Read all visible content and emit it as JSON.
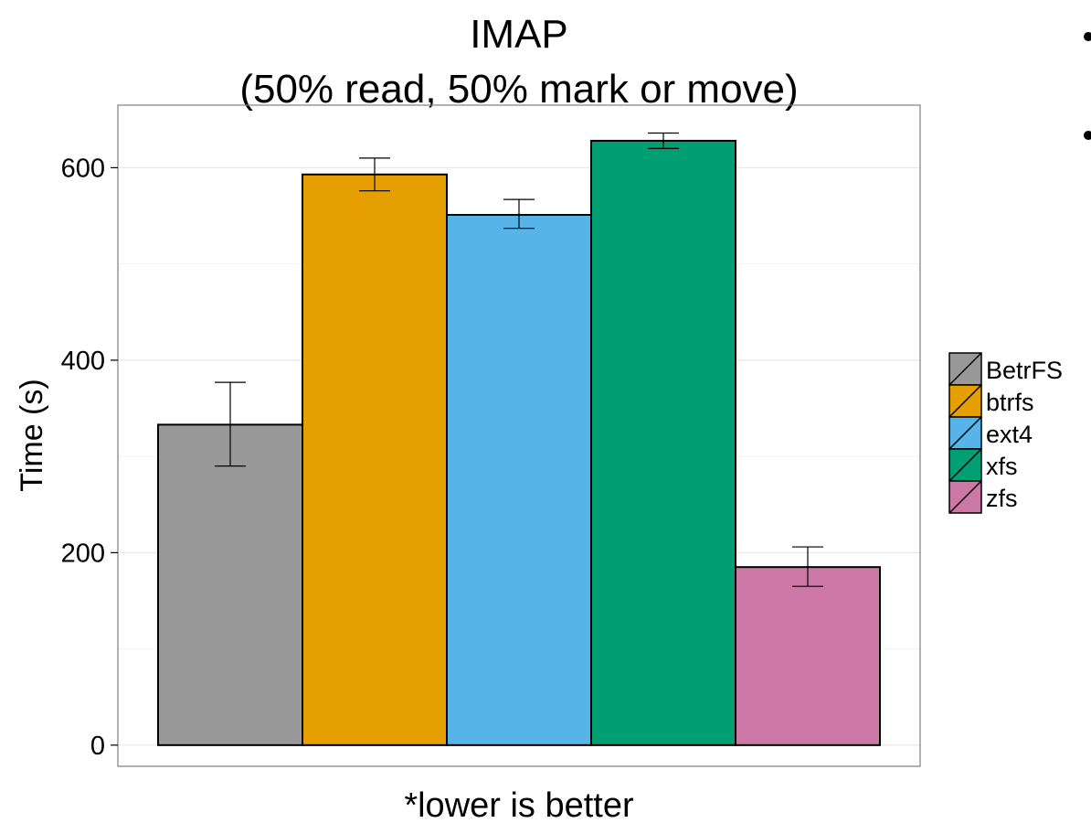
{
  "chart_data": {
    "type": "bar",
    "title_line1": "IMAP",
    "title_line2": "(50% read, 50% mark or move)",
    "xlabel": "*lower is better",
    "ylabel": "Time (s)",
    "ylim": [
      -22,
      665
    ],
    "y_ticks": [
      0,
      200,
      400,
      600
    ],
    "y_tick_labels": [
      "0",
      "200",
      "400",
      "600"
    ],
    "y_minor_ticks": [
      100,
      300,
      500
    ],
    "grid": true,
    "legend_position": "right",
    "categories": [
      "BetrFS",
      "btrfs",
      "ext4",
      "xfs",
      "zfs"
    ],
    "values": [
      333,
      593,
      551,
      628,
      185
    ],
    "error_low": [
      290,
      576,
      537,
      620,
      165
    ],
    "error_high": [
      377,
      610,
      567,
      636,
      206
    ],
    "colors": [
      "#999999",
      "#E69F00",
      "#56B4E9",
      "#009E73",
      "#CC79A7"
    ]
  }
}
